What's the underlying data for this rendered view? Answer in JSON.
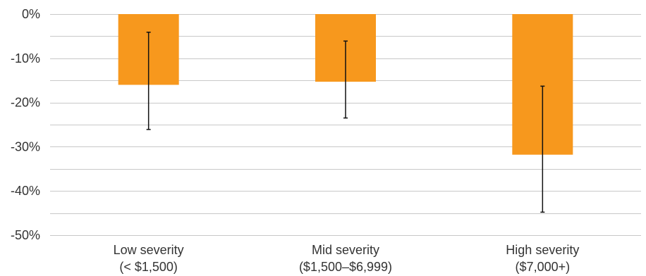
{
  "chart_data": {
    "type": "bar",
    "categories": [
      [
        "Low severity",
        "(< $1,500)"
      ],
      [
        "Mid severity",
        "($1,500–$6,999)"
      ],
      [
        "High severity",
        "($7,000+)"
      ]
    ],
    "values": [
      -16,
      -15.3,
      -31.8
    ],
    "error_bars": [
      {
        "low": -26.1,
        "high": -4.1
      },
      {
        "low": -23.5,
        "high": -6.1
      },
      {
        "low": -44.8,
        "high": -16.3
      }
    ],
    "ylim": [
      -50,
      0
    ],
    "yticks": [
      0,
      -10,
      -20,
      -30,
      -40,
      -50
    ],
    "ytick_labels": [
      "0%",
      "-10%",
      "-20%",
      "-30%",
      "-40%",
      "-50%"
    ],
    "minor_gridlines": [
      -5,
      -15,
      -25,
      -35,
      -45
    ],
    "grid": true,
    "title": "",
    "xlabel": "",
    "ylabel": "",
    "colors": {
      "bar": "#F7981D",
      "error_bar": "#111111",
      "grid": "#C8C8C8",
      "text": "#333333"
    }
  }
}
